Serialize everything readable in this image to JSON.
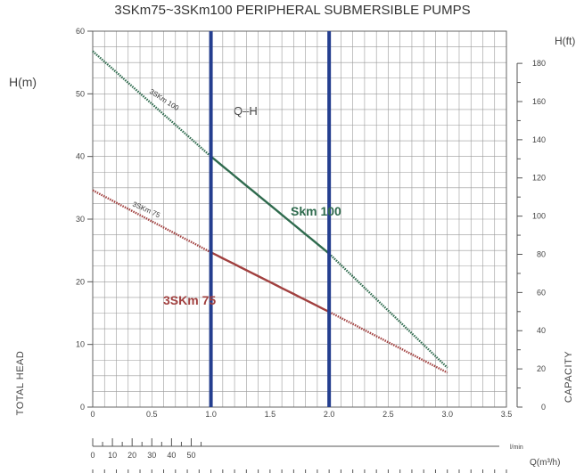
{
  "chart_data": {
    "type": "line",
    "title": "3SKm75~3SKm100 PERIPHERAL SUBMERSIBLE PUMPS",
    "ylabel_left": "H(m)",
    "ylabel_right": "H(ft)",
    "side_label_left": "TOTAL HEAD",
    "side_label_right": "CAPACITY",
    "xlabel": "Q(m³/h)",
    "xlabel_secondary": "l/min",
    "annotation": "Q–H",
    "xlim": [
      0,
      3.5
    ],
    "ylim": [
      0,
      60
    ],
    "ylim_ft": [
      0,
      196.85
    ],
    "x_ticks": [
      "0",
      "0.5",
      "1.0",
      "1.5",
      "2.0",
      "2.5",
      "3.0",
      "3.5"
    ],
    "y_ticks": [
      "0",
      "10",
      "20",
      "30",
      "40",
      "50",
      "60"
    ],
    "ft_ticks": [
      "0",
      "20",
      "40",
      "60",
      "80",
      "100",
      "120",
      "140",
      "160",
      "180"
    ],
    "lmin_ticks": [
      "0",
      "10",
      "20",
      "30",
      "40",
      "50"
    ],
    "grid": true,
    "vertical_markers": [
      1.0,
      2.0
    ],
    "marker_color": "#243e8f",
    "series": [
      {
        "name": "3SKm 100",
        "display_label": "Skm 100",
        "color": "#2f6b4e",
        "x": [
          0,
          1.0,
          2.0,
          3.0
        ],
        "y": [
          56.8,
          40,
          24.5,
          6.3
        ],
        "solid_range": [
          1.0,
          2.0
        ]
      },
      {
        "name": "3SKm 75",
        "display_label": "3SKm 75",
        "color": "#a1403f",
        "x": [
          0,
          1.0,
          2.0,
          3.0
        ],
        "y": [
          34.6,
          24.7,
          15.2,
          5.5
        ],
        "solid_range": [
          1.0,
          2.0
        ]
      }
    ]
  }
}
